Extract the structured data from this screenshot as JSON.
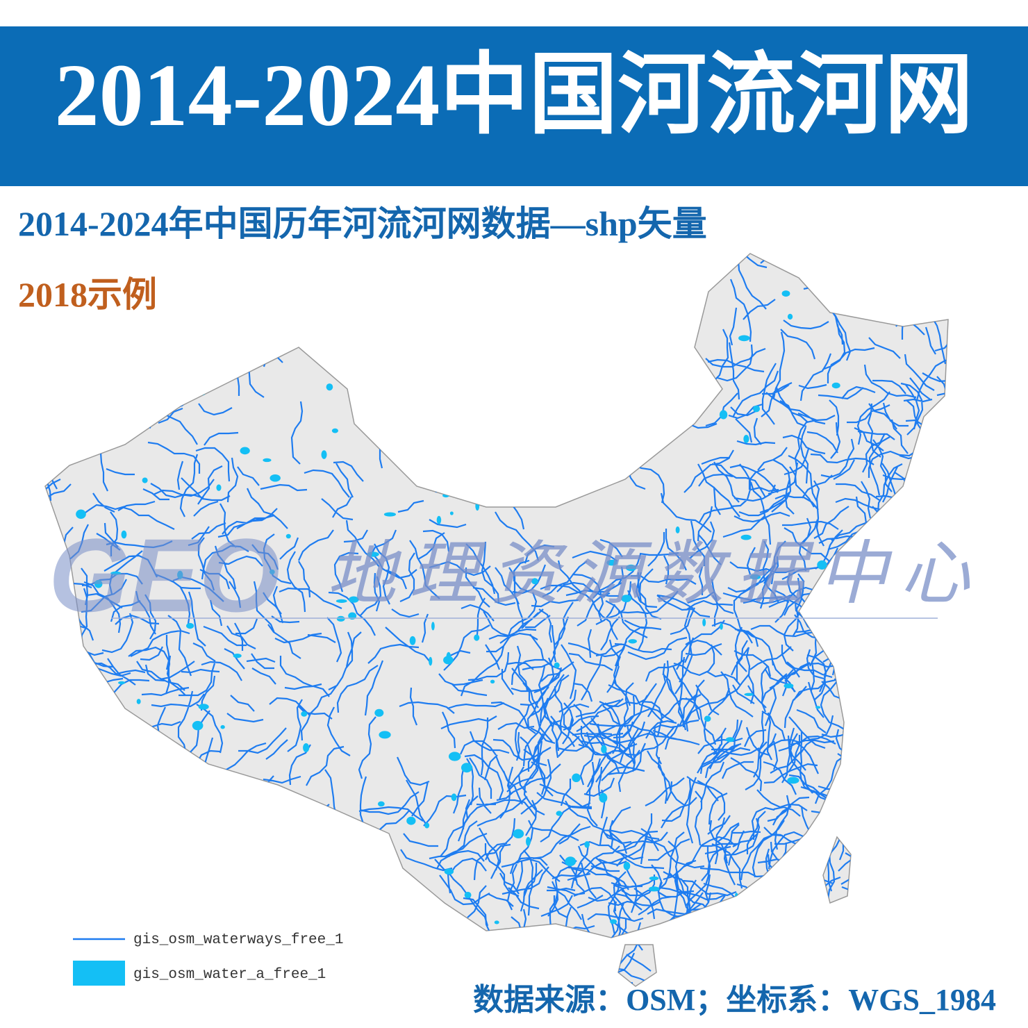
{
  "header": {
    "title": "2014-2024中国河流河网"
  },
  "subtitle": "2014-2024年中国历年河流河网数据—shp矢量",
  "example_label": "2018示例",
  "watermark": {
    "logo": "GEO",
    "text": "地理资源数据中心"
  },
  "legend": {
    "items": [
      {
        "label": "gis_osm_waterways_free_1"
      },
      {
        "label": "gis_osm_water_a_free_1"
      }
    ]
  },
  "source": "数据来源：OSM；坐标系：WGS_1984"
}
